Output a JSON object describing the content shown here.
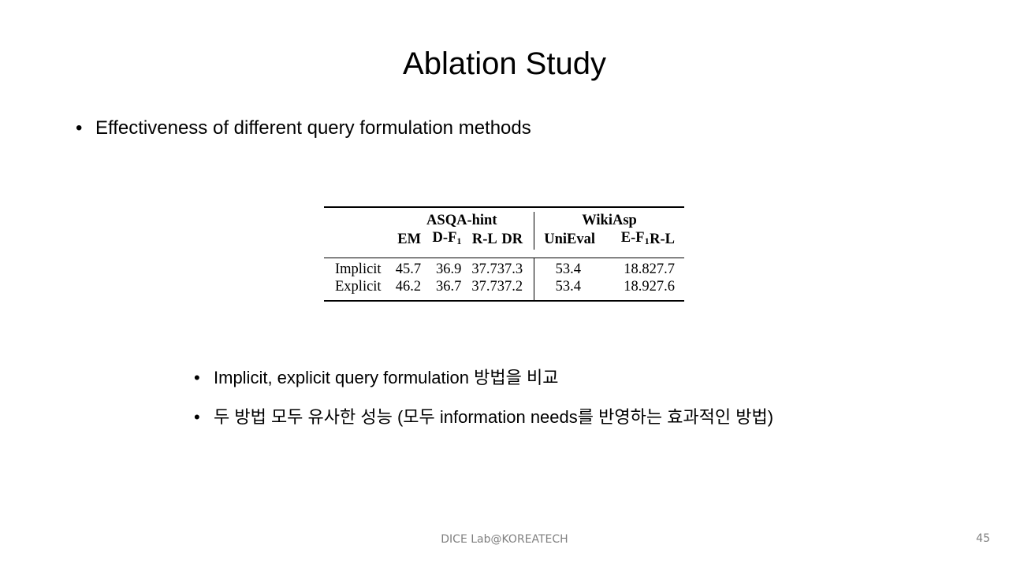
{
  "slide": {
    "title": "Ablation Study",
    "bullet_main": "Effectiveness of different query formulation methods",
    "sub_bullets": [
      "Implicit, explicit query formulation 방법을 비교",
      "두 방법 모두 유사한 성능 (모두 information needs를 반영하는 효과적인 방법)"
    ],
    "bullet_symbol": "•",
    "footer": "DICE Lab@KOREATECH",
    "page_number": "45"
  },
  "table": {
    "group_headers": [
      "ASQA-hint",
      "WikiAsp"
    ],
    "asqa_cols": [
      "EM",
      "D-F",
      "R-L",
      "DR"
    ],
    "wiki_cols": [
      "UniEval",
      "E-F",
      "R-L"
    ],
    "subscript": "1",
    "rows": [
      {
        "label": "Implicit",
        "values": [
          "45.7",
          "36.9",
          "37.7",
          "37.3",
          "53.4",
          "18.8",
          "27.7"
        ]
      },
      {
        "label": "Explicit",
        "values": [
          "46.2",
          "36.7",
          "37.7",
          "37.2",
          "53.4",
          "18.9",
          "27.6"
        ]
      }
    ]
  }
}
